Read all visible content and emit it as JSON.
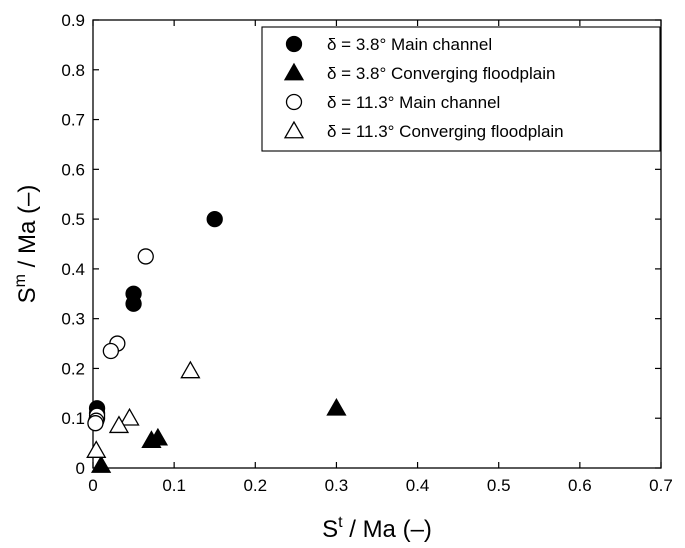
{
  "chart_data": {
    "type": "scatter",
    "xlabel": {
      "base": "S",
      "sup": "t",
      "rest": " / Ma  (–)"
    },
    "ylabel": {
      "base": "S",
      "sup": "m",
      "rest": " / Ma  (–)"
    },
    "xlim": [
      0,
      0.7
    ],
    "ylim": [
      0,
      0.9
    ],
    "x_ticks": [
      "0",
      "0.1",
      "0.2",
      "0.3",
      "0.4",
      "0.5",
      "0.6",
      "0.7"
    ],
    "y_ticks": [
      "0",
      "0.1",
      "0.2",
      "0.3",
      "0.4",
      "0.5",
      "0.6",
      "0.7",
      "0.8",
      "0.9"
    ],
    "grid": false,
    "legend_position": "top-right",
    "series": [
      {
        "name": "δ = 3.8° Main channel",
        "marker": "circle-filled",
        "color": "#000000",
        "points": [
          [
            0.15,
            0.5
          ],
          [
            0.05,
            0.35
          ],
          [
            0.05,
            0.33
          ],
          [
            0.005,
            0.12
          ],
          [
            0.005,
            0.11
          ],
          [
            0.005,
            0.1
          ]
        ]
      },
      {
        "name": "δ = 3.8° Converging floodplain",
        "marker": "triangle-filled",
        "color": "#000000",
        "points": [
          [
            0.3,
            0.12
          ],
          [
            0.08,
            0.06
          ],
          [
            0.072,
            0.055
          ],
          [
            0.01,
            0.005
          ]
        ]
      },
      {
        "name": "δ = 11.3° Main channel",
        "marker": "circle-open",
        "color": "#000000",
        "points": [
          [
            0.065,
            0.425
          ],
          [
            0.03,
            0.25
          ],
          [
            0.022,
            0.235
          ],
          [
            0.005,
            0.105
          ],
          [
            0.004,
            0.095
          ],
          [
            0.003,
            0.09
          ]
        ]
      },
      {
        "name": "δ = 11.3° Converging floodplain",
        "marker": "triangle-open",
        "color": "#000000",
        "points": [
          [
            0.12,
            0.195
          ],
          [
            0.045,
            0.1
          ],
          [
            0.032,
            0.085
          ],
          [
            0.004,
            0.035
          ]
        ]
      }
    ]
  }
}
